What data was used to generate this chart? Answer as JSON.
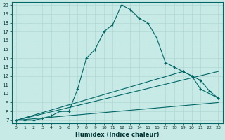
{
  "xlabel": "Humidex (Indice chaleur)",
  "bg_color": "#c8eae6",
  "line_color": "#006666",
  "grid_color": "#b0d8d4",
  "xlim": [
    -0.5,
    23.5
  ],
  "ylim": [
    6.7,
    20.3
  ],
  "xticks": [
    0,
    1,
    2,
    3,
    4,
    5,
    6,
    7,
    8,
    9,
    10,
    11,
    12,
    13,
    14,
    15,
    16,
    17,
    18,
    19,
    20,
    21,
    22,
    23
  ],
  "yticks": [
    7,
    8,
    9,
    10,
    11,
    12,
    13,
    14,
    15,
    16,
    17,
    18,
    19,
    20
  ],
  "line1_x": [
    0,
    1,
    2,
    3,
    4,
    5,
    6,
    7,
    8,
    9,
    10,
    11,
    12,
    13,
    14,
    15,
    16,
    17,
    18,
    19,
    20,
    21,
    22,
    23
  ],
  "line1_y": [
    7,
    7,
    7,
    7.2,
    7.5,
    8.0,
    8.0,
    10.5,
    14.0,
    15.0,
    17.0,
    17.8,
    20.0,
    19.5,
    18.5,
    18.0,
    16.3,
    13.5,
    13.0,
    12.5,
    12.0,
    10.5,
    10.0,
    9.5
  ],
  "line2_x": [
    0,
    19,
    20,
    21,
    22,
    23
  ],
  "line2_y": [
    7,
    12.5,
    12.0,
    11.5,
    10.3,
    9.5
  ],
  "line3_x": [
    0,
    23
  ],
  "line3_y": [
    7,
    9.0
  ],
  "line4_x": [
    0,
    23
  ],
  "line4_y": [
    7,
    12.5
  ]
}
